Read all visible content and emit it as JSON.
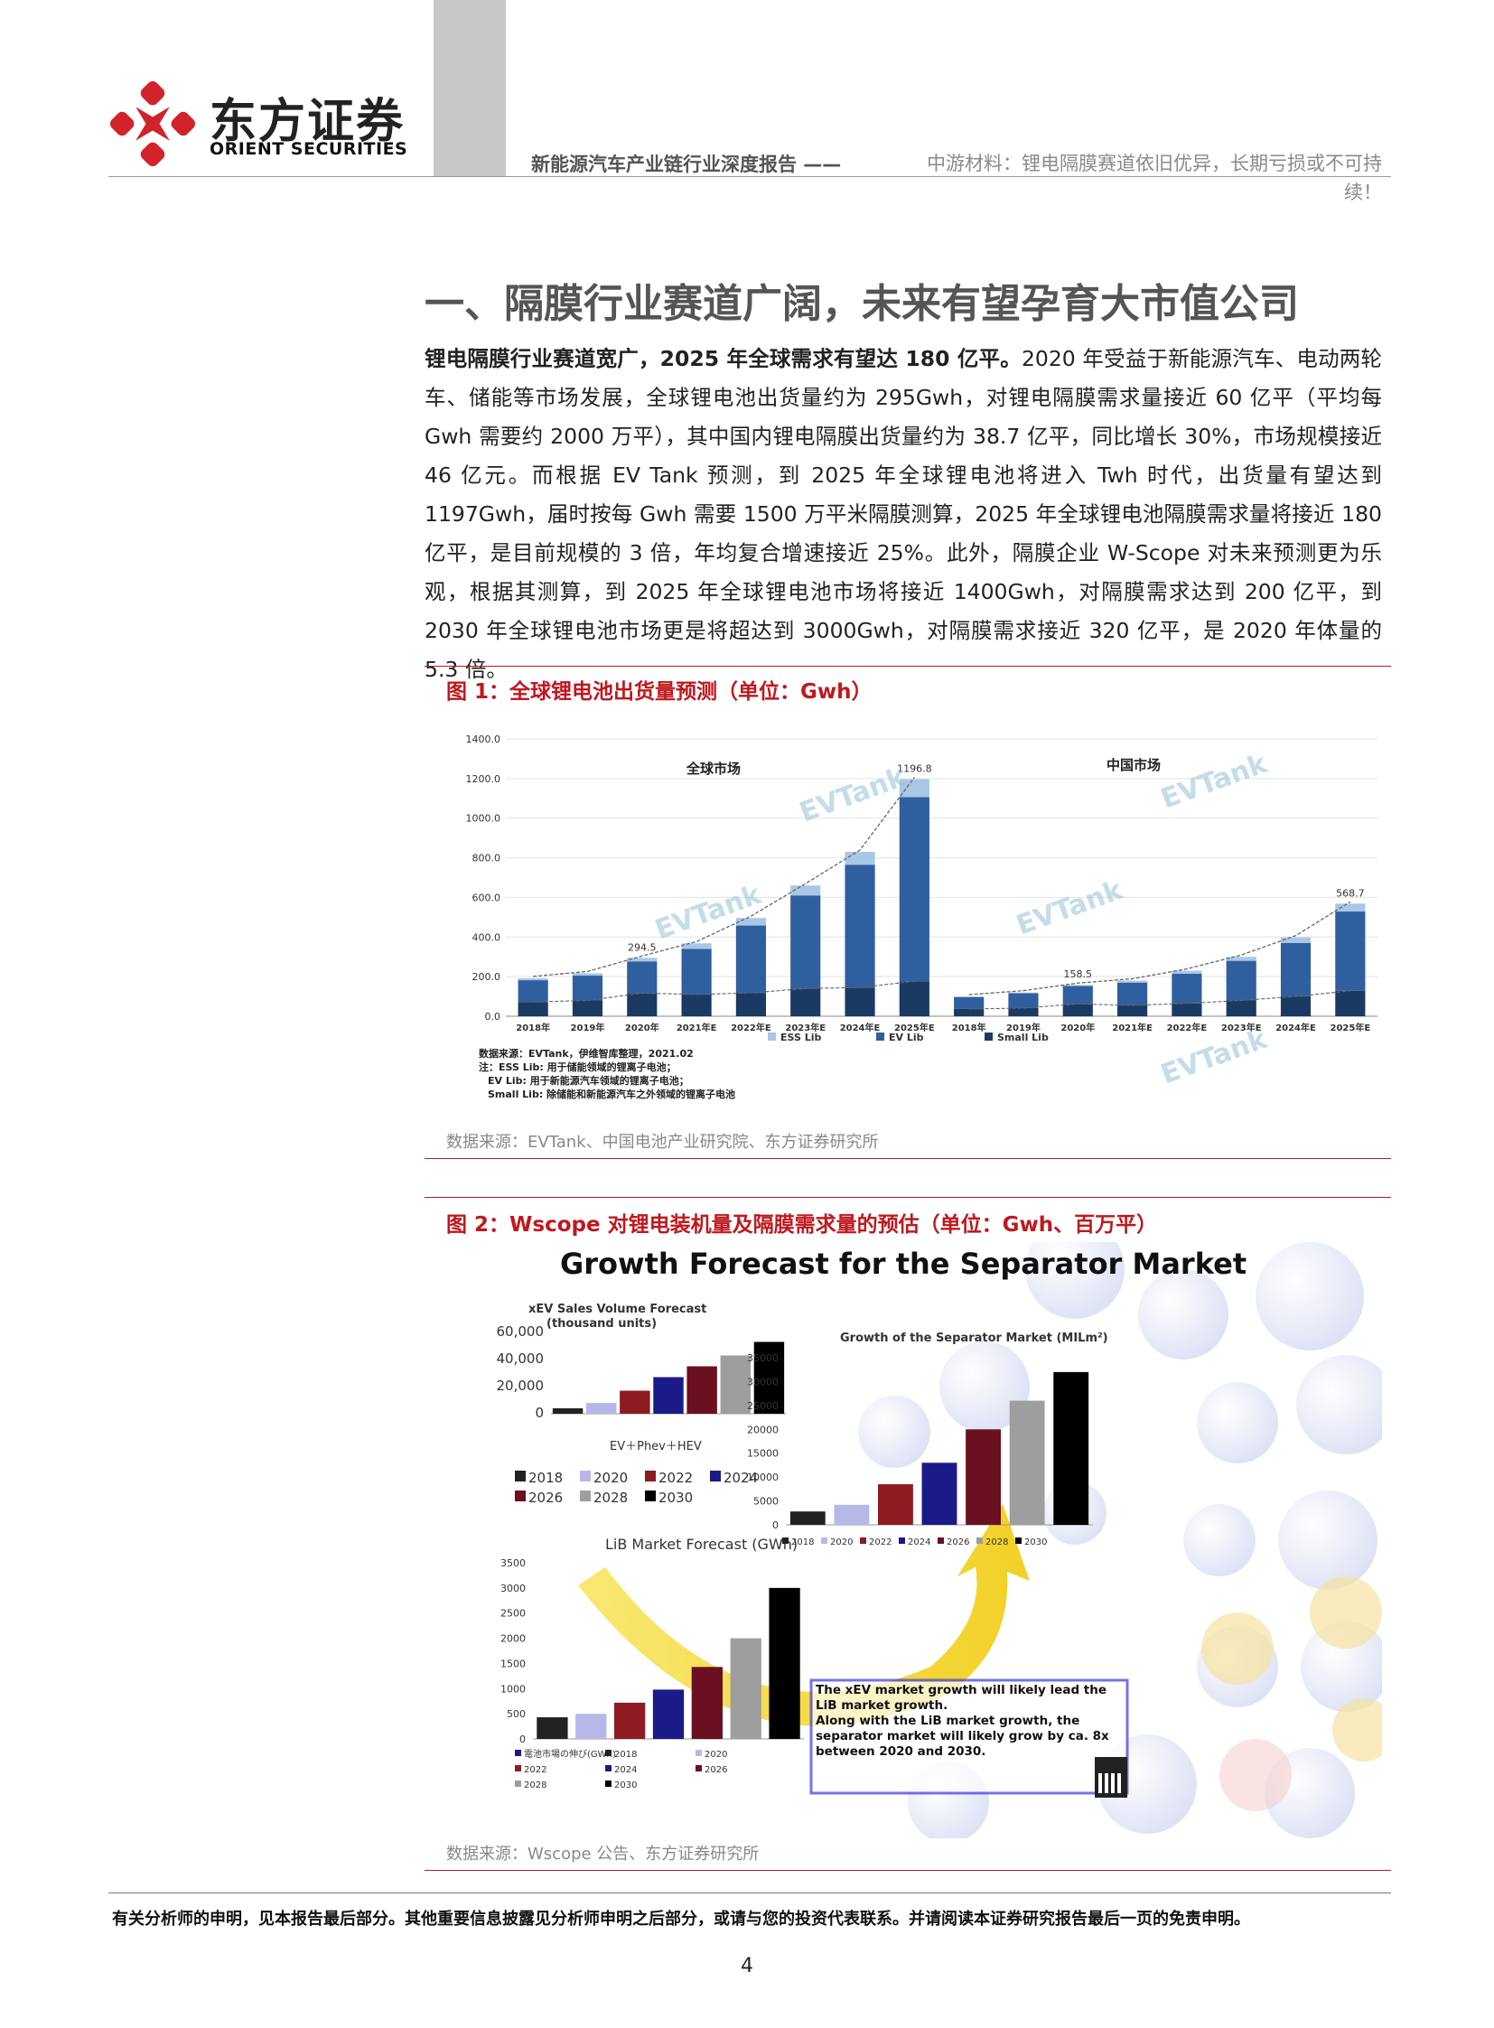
{
  "header": {
    "logo_cn": "东方证券",
    "logo_en": "ORIENT SECURITIES",
    "report_series": "新能源汽车产业链行业深度报告 ——",
    "report_subtitle": "中游材料：锂电隔膜赛道依旧优异，长期亏损或不可持续！"
  },
  "section": {
    "title": "一、隔膜行业赛道广阔，未来有望孕育大市值公司",
    "lead_bold": "锂电隔膜行业赛道宽广，2025 年全球需求有望达 180 亿平。",
    "paragraph": "2020 年受益于新能源汽车、电动两轮车、储能等市场发展，全球锂电池出货量约为 295Gwh，对锂电隔膜需求量接近 60 亿平（平均每 Gwh 需要约 2000 万平），其中国内锂电隔膜出货量约为 38.7 亿平，同比增长 30%，市场规模接近 46 亿元。而根据 EV Tank 预测，到 2025 年全球锂电池将进入 Twh 时代，出货量有望达到 1197Gwh，届时按每 Gwh 需要 1500 万平米隔膜测算，2025 年全球锂电池隔膜需求量将接近 180 亿平，是目前规模的 3 倍，年均复合增速接近 25%。此外，隔膜企业 W-Scope 对未来预测更为乐观，根据其测算，到 2025 年全球锂电池市场将接近 1400Gwh，对隔膜需求达到 200 亿平，到 2030 年全球锂电池市场更是将超达到 3000Gwh，对隔膜需求接近 320 亿平，是 2020 年体量的 5.3 倍。"
  },
  "figure1": {
    "title": "图 1：全球锂电池出货量预测（单位：Gwh）",
    "source": "数据来源：EVTank、中国电池产业研究院、东方证券研究所",
    "panel_global": "全球市场",
    "panel_china": "中国市场",
    "notes": [
      "数据来源：EVTank，伊维智库整理，2021.02",
      "注：ESS Lib: 用于储能领域的锂离子电池；",
      "EV Lib: 用于新能源汽车领域的锂离子电池；",
      "Small Lib: 除储能和新能源汽车之外领域的锂离子电池"
    ],
    "watermark": "EVTank"
  },
  "figure2": {
    "title": "图 2：Wscope 对锂电装机量及隔膜需求量的预估（单位：Gwh、百万平）",
    "source": "数据来源：Wscope 公告、东方证券研究所",
    "main_title": "Growth Forecast for the Separator Market",
    "xev_title_1": "xEV Sales Volume Forecast",
    "xev_title_2": "(thousand units)",
    "xev_xlabel": "EV＋Phev＋HEV",
    "lib_title": "LiB Market Forecast (GWh)",
    "sep_title": "Growth of the Separator Market (MILm²)",
    "callout_1": "The xEV market growth will likely lead the LiB market growth.",
    "callout_2": "Along with the LiB market growth, the separator market will likely grow by ca. 8x between 2020 and 2030.",
    "lib_legend_series": "電池市場の伸び(GWh)"
  },
  "chart_data": [
    {
      "type": "bar",
      "stacked": true,
      "panel": "全球市场",
      "categories": [
        "2018年",
        "2019年",
        "2020年",
        "2021年E",
        "2022年E",
        "2023年E",
        "2024年E",
        "2025年E"
      ],
      "series": [
        {
          "name": "ESS Lib",
          "values": [
            10,
            12,
            18,
            28,
            38,
            50,
            65,
            90
          ]
        },
        {
          "name": "EV Lib",
          "values": [
            110,
            125,
            160,
            230,
            340,
            470,
            620,
            930
          ]
        },
        {
          "name": "Small Lib",
          "values": [
            72,
            80,
            117,
            110,
            118,
            140,
            145,
            176.8
          ]
        }
      ],
      "labels": {
        "2020年": "294.5",
        "2025年E": "1196.8"
      },
      "yticks": [
        "0.0",
        "200.0",
        "400.0",
        "600.0",
        "800.0",
        "1000.0",
        "1200.0",
        "1400.0"
      ],
      "ylim": [
        0,
        1400
      ],
      "legend": [
        "ESS Lib",
        "EV Lib",
        "Small Lib"
      ]
    },
    {
      "type": "bar",
      "stacked": true,
      "panel": "中国市场",
      "categories": [
        "2018年",
        "2019年",
        "2020年",
        "2021年E",
        "2022年E",
        "2023年E",
        "2024年E",
        "2025年E"
      ],
      "series": [
        {
          "name": "ESS Lib",
          "values": [
            3,
            4,
            6,
            10,
            15,
            20,
            28,
            40
          ]
        },
        {
          "name": "EV Lib",
          "values": [
            60,
            75,
            90,
            115,
            150,
            200,
            270,
            400
          ]
        },
        {
          "name": "Small Lib",
          "values": [
            37,
            41,
            62.5,
            55,
            65,
            80,
            100,
            128.7
          ]
        }
      ],
      "labels": {
        "2020年": "158.5",
        "2025年E": "568.7"
      },
      "ylim": [
        0,
        1400
      ]
    },
    {
      "type": "bar",
      "panel": "xEV Sales Volume Forecast",
      "categories": [
        "2018",
        "2020",
        "2022",
        "2024",
        "2026",
        "2028",
        "2030"
      ],
      "values": [
        4000,
        8000,
        17000,
        27000,
        35000,
        43000,
        53000
      ],
      "yticks": [
        "0",
        "20,000",
        "40,000",
        "60,000"
      ],
      "ylim": [
        0,
        60000
      ]
    },
    {
      "type": "bar",
      "panel": "LiB Market Forecast (GWh)",
      "categories": [
        "2018",
        "2020",
        "2022",
        "2024",
        "2026",
        "2028",
        "2030"
      ],
      "values": [
        430,
        500,
        720,
        980,
        1430,
        2000,
        3000
      ],
      "yticks": [
        "0",
        "500",
        "1000",
        "1500",
        "2000",
        "2500",
        "3000",
        "3500"
      ],
      "ylim": [
        0,
        3500
      ]
    },
    {
      "type": "bar",
      "panel": "Growth of the Separator Market (MILm²)",
      "categories": [
        "2018",
        "2020",
        "2022",
        "2024",
        "2026",
        "2028",
        "2030"
      ],
      "values": [
        2800,
        4200,
        8500,
        13000,
        20000,
        26000,
        32000
      ],
      "yticks": [
        "0",
        "5000",
        "10000",
        "15000",
        "20000",
        "25000",
        "30000",
        "35000"
      ],
      "ylim": [
        0,
        35000
      ]
    }
  ],
  "footer": {
    "disclaimer": "有关分析师的申明，见本报告最后部分。其他重要信息披露见分析师申明之后部分，或请与您的投资代表联系。并请阅读本证券研究报告最后一页的免责申明。",
    "page_number": "4"
  }
}
